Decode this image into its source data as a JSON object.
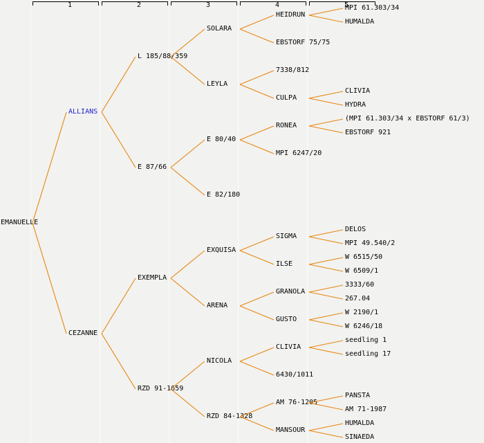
{
  "header": {
    "columns": [
      "1",
      "2",
      "3",
      "4",
      "5"
    ]
  },
  "colors": {
    "background": "#f2f2f0",
    "gridline": "#fcfcfc",
    "line": "#e8850e",
    "text": "#000000",
    "highlight": "#2323cb",
    "header_text": "#000000"
  },
  "tree": {
    "label": "EMANUELLE",
    "children": [
      {
        "label": "ALLIANS",
        "highlight": true,
        "children": [
          {
            "label": "L 185/88/359",
            "children": [
              {
                "label": "SOLARA",
                "children": [
                  {
                    "label": "HEIDRUN",
                    "children": [
                      {
                        "label": "MPI 61.303/34"
                      },
                      {
                        "label": "HUMALDA"
                      }
                    ]
                  },
                  {
                    "label": "EBSTORF 75/75"
                  }
                ]
              },
              {
                "label": "LEYLA",
                "children": [
                  {
                    "label": "7338/812"
                  },
                  {
                    "label": "CULPA",
                    "children": [
                      {
                        "label": "CLIVIA"
                      },
                      {
                        "label": "HYDRA"
                      }
                    ]
                  }
                ]
              }
            ]
          },
          {
            "label": "E 87/66",
            "children": [
              {
                "label": "E 80/40",
                "children": [
                  {
                    "label": "RONEA",
                    "children": [
                      {
                        "label": "(MPI 61.303/34 x EBSTORF 61/3)"
                      },
                      {
                        "label": "EBSTORF 921"
                      }
                    ]
                  },
                  {
                    "label": "MPI 6247/20"
                  }
                ]
              },
              {
                "label": "E 82/180"
              }
            ]
          }
        ]
      },
      {
        "label": "CEZANNE",
        "children": [
          {
            "label": "EXEMPLA",
            "children": [
              {
                "label": "EXQUISA",
                "children": [
                  {
                    "label": "SIGMA",
                    "children": [
                      {
                        "label": "DELOS"
                      },
                      {
                        "label": "MPI 49.540/2"
                      }
                    ]
                  },
                  {
                    "label": "ILSE",
                    "children": [
                      {
                        "label": "W 6515/50"
                      },
                      {
                        "label": "W 6509/1"
                      }
                    ]
                  }
                ]
              },
              {
                "label": "ARENA",
                "children": [
                  {
                    "label": "GRANOLA",
                    "children": [
                      {
                        "label": "3333/60"
                      },
                      {
                        "label": "267.04"
                      }
                    ]
                  },
                  {
                    "label": "GUSTO",
                    "children": [
                      {
                        "label": "W 2190/1"
                      },
                      {
                        "label": "W 6246/18"
                      }
                    ]
                  }
                ]
              }
            ]
          },
          {
            "label": "RZD 91-1659",
            "children": [
              {
                "label": "NICOLA",
                "children": [
                  {
                    "label": "CLIVIA",
                    "children": [
                      {
                        "label": "seedling 1"
                      },
                      {
                        "label": "seedling 17"
                      }
                    ]
                  },
                  {
                    "label": "6430/1011"
                  }
                ]
              },
              {
                "label": "RZD 84-1328",
                "children": [
                  {
                    "label": "AM 76-1205",
                    "children": [
                      {
                        "label": "PANSTA"
                      },
                      {
                        "label": "AM 71-1987"
                      }
                    ]
                  },
                  {
                    "label": "MANSOUR",
                    "children": [
                      {
                        "label": "HUMALDA"
                      },
                      {
                        "label": "SINAEDA"
                      }
                    ]
                  }
                ]
              }
            ]
          }
        ]
      }
    ]
  }
}
